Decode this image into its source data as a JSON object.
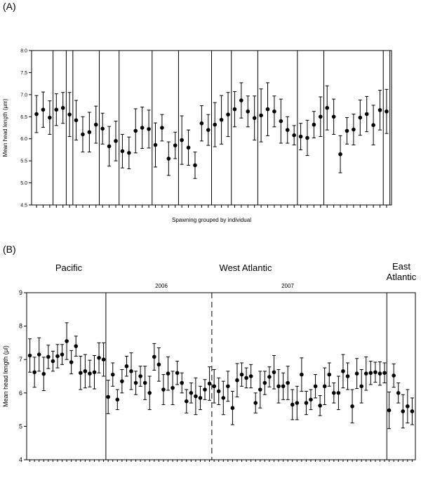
{
  "chart_data": [
    {
      "type": "scatter",
      "panel_label": "(A)",
      "ylabel": "Mean head length (μm)",
      "xlabel": "Spawning grouped by individual",
      "ylim": [
        4.5,
        8.0
      ],
      "yticks": [
        "4.5",
        "5.0",
        "5.5",
        "6.0",
        "6.5",
        "7.0",
        "7.5",
        "8.0"
      ],
      "grid": false,
      "group_boundaries_after_index": [
        2,
        4,
        5,
        9,
        12,
        17,
        21,
        26,
        29,
        33,
        39,
        43,
        52,
        53
      ],
      "points": [
        {
          "y": 6.56,
          "err": 0.42
        },
        {
          "y": 6.66,
          "err": 0.4
        },
        {
          "y": 6.48,
          "err": 0.38
        },
        {
          "y": 6.66,
          "err": 0.36
        },
        {
          "y": 6.7,
          "err": 0.35
        },
        {
          "y": 6.55,
          "err": 0.5
        },
        {
          "y": 6.42,
          "err": 0.45
        },
        {
          "y": 6.1,
          "err": 0.4
        },
        {
          "y": 6.15,
          "err": 0.45
        },
        {
          "y": 6.32,
          "err": 0.42
        },
        {
          "y": 6.23,
          "err": 0.35
        },
        {
          "y": 5.83,
          "err": 0.45
        },
        {
          "y": 5.95,
          "err": 0.45
        },
        {
          "y": 5.72,
          "err": 0.38
        },
        {
          "y": 5.68,
          "err": 0.36
        },
        {
          "y": 6.18,
          "err": 0.5
        },
        {
          "y": 6.25,
          "err": 0.47
        },
        {
          "y": 6.22,
          "err": 0.43
        },
        {
          "y": 5.86,
          "err": 0.5
        },
        {
          "y": 6.25,
          "err": 0.3
        },
        {
          "y": 5.55,
          "err": 0.38
        },
        {
          "y": 5.85,
          "err": 0.3
        },
        {
          "y": 5.97,
          "err": 0.55
        },
        {
          "y": 5.8,
          "err": 0.4
        },
        {
          "y": 5.4,
          "err": 0.3
        },
        {
          "y": 6.35,
          "err": 0.4
        },
        {
          "y": 6.2,
          "err": 0.35
        },
        {
          "y": 6.32,
          "err": 0.5
        },
        {
          "y": 6.43,
          "err": 0.55
        },
        {
          "y": 6.55,
          "err": 0.5
        },
        {
          "y": 6.67,
          "err": 0.4
        },
        {
          "y": 6.87,
          "err": 0.4
        },
        {
          "y": 6.62,
          "err": 0.35
        },
        {
          "y": 6.47,
          "err": 0.5
        },
        {
          "y": 6.53,
          "err": 0.6
        },
        {
          "y": 6.67,
          "err": 0.6
        },
        {
          "y": 6.62,
          "err": 0.35
        },
        {
          "y": 6.4,
          "err": 0.5
        },
        {
          "y": 6.2,
          "err": 0.3
        },
        {
          "y": 6.08,
          "err": 0.22
        },
        {
          "y": 6.05,
          "err": 0.3
        },
        {
          "y": 6.02,
          "err": 0.4
        },
        {
          "y": 6.32,
          "err": 0.3
        },
        {
          "y": 6.5,
          "err": 0.45
        },
        {
          "y": 6.7,
          "err": 0.5
        },
        {
          "y": 6.5,
          "err": 0.4
        },
        {
          "y": 5.65,
          "err": 0.42
        },
        {
          "y": 6.18,
          "err": 0.3
        },
        {
          "y": 6.21,
          "err": 0.35
        },
        {
          "y": 6.48,
          "err": 0.4
        },
        {
          "y": 6.56,
          "err": 0.4
        },
        {
          "y": 6.31,
          "err": 0.45
        },
        {
          "y": 6.65,
          "err": 0.45
        },
        {
          "y": 6.62,
          "err": 0.5
        }
      ]
    },
    {
      "type": "scatter",
      "panel_label": "(B)",
      "ylabel": "Mean head length (μl)",
      "xlabel": "",
      "ylim": [
        4,
        9
      ],
      "yticks": [
        "4",
        "5",
        "6",
        "7",
        "8",
        "9"
      ],
      "grid": false,
      "regions": [
        "Pacific",
        "West Atlantic",
        "East\nAtlantic"
      ],
      "years": [
        "2006",
        "2007"
      ],
      "boundary_solid_after_index": [
        17,
        78
      ],
      "boundary_dashed_after_index": [
        40
      ],
      "points": [
        7.12,
        6.62,
        7.15,
        6.57,
        7.08,
        6.95,
        7.1,
        7.15,
        7.55,
        6.92,
        7.4,
        6.6,
        6.65,
        6.58,
        6.62,
        7.05,
        7.0,
        5.88,
        6.55,
        5.8,
        6.35,
        6.8,
        6.65,
        6.3,
        6.5,
        6.3,
        6.0,
        7.08,
        6.85,
        6.1,
        6.58,
        6.15,
        6.6,
        6.3,
        5.75,
        6.0,
        5.9,
        5.85,
        6.1,
        6.28,
        6.2,
        6.05,
        5.85,
        6.2,
        5.55,
        6.38,
        6.55,
        6.45,
        6.5,
        5.7,
        6.1,
        6.3,
        6.48,
        6.62,
        6.2,
        6.2,
        6.3,
        5.65,
        5.7,
        6.55,
        5.7,
        5.8,
        6.2,
        5.62,
        6.2,
        6.55,
        6.0,
        6.0,
        6.65,
        6.5,
        5.6,
        6.58,
        6.2,
        6.58,
        6.6,
        6.62,
        6.58,
        6.6,
        5.48,
        6.52,
        6.0,
        5.45,
        5.6,
        5.45
      ]
    }
  ],
  "texts": {
    "panelA": "(A)",
    "panelB": "(B)",
    "ylabelA": "Mean head length (μm)",
    "ylabelB": "Mean head length (μl)",
    "xlabelA": "Spawning grouped by individual",
    "regionPacific": "Pacific",
    "regionWest": "West Atlantic",
    "regionEast1": "East",
    "regionEast2": "Atlantic",
    "year2006": "2006",
    "year2007": "2007"
  }
}
